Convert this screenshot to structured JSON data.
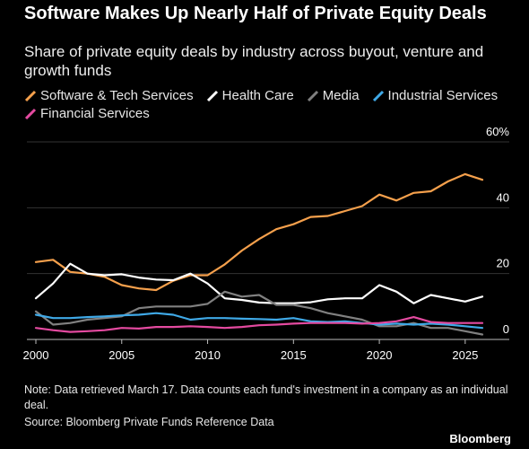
{
  "header": {
    "title": "Software Makes Up Nearly Half of Private Equity Deals",
    "subtitle": "Share of private equity deals by industry across buyout, venture and growth funds"
  },
  "colors": {
    "background": "#000000",
    "software": "#f5a04c",
    "health_care": "#ffffff",
    "media": "#808080",
    "industrial": "#3fa9e7",
    "financial": "#e44aa0",
    "grid": "#333333"
  },
  "legend": [
    {
      "label": "Software & Tech Services",
      "color": "#f5a04c",
      "icon": "slash-line-icon"
    },
    {
      "label": "Health Care",
      "color": "#ffffff",
      "icon": "slash-line-icon"
    },
    {
      "label": "Media",
      "color": "#808080",
      "icon": "slash-line-icon"
    },
    {
      "label": "Industrial Services",
      "color": "#3fa9e7",
      "icon": "slash-line-icon"
    },
    {
      "label": "Financial Services",
      "color": "#e44aa0",
      "icon": "slash-line-icon"
    }
  ],
  "footer": {
    "note": "Note: Data retrieved March 17. Data counts each fund's investment in a company as an individual deal.",
    "source": "Source: Bloomberg Private Funds Reference Data",
    "brand": "Bloomberg"
  },
  "chart_data": {
    "type": "line",
    "title": "Software Makes Up Nearly Half of Private Equity Deals",
    "subtitle": "Share of private equity deals by industry across buyout, venture and growth funds",
    "xlabel": "",
    "ylabel": "",
    "xlim": [
      2000,
      2026
    ],
    "ylim": [
      0,
      60
    ],
    "x_ticks": [
      2000,
      2005,
      2010,
      2015,
      2020,
      2025
    ],
    "x_tick_labels": [
      "2000",
      "2005",
      "2010",
      "2015",
      "2020",
      "2025"
    ],
    "y_ticks": [
      0,
      20,
      40,
      60
    ],
    "y_tick_labels": [
      "0",
      "20",
      "40",
      "60%"
    ],
    "grid": "horizontal",
    "legend_position": "top",
    "x": [
      2000,
      2001,
      2002,
      2003,
      2004,
      2005,
      2006,
      2007,
      2008,
      2009,
      2010,
      2011,
      2012,
      2013,
      2014,
      2015,
      2016,
      2017,
      2018,
      2019,
      2020,
      2021,
      2022,
      2023,
      2024,
      2025,
      2026
    ],
    "series": [
      {
        "name": "Software & Tech Services",
        "color": "#f5a04c",
        "values": [
          23.5,
          24.2,
          20.5,
          20.0,
          19.0,
          16.5,
          15.5,
          15.0,
          17.8,
          19.5,
          19.5,
          22.8,
          27.0,
          30.5,
          33.5,
          35.0,
          37.2,
          37.5,
          39.0,
          40.5,
          44.0,
          42.2,
          44.5,
          45.0,
          48.0,
          50.2,
          48.5
        ]
      },
      {
        "name": "Health Care",
        "color": "#ffffff",
        "values": [
          12.5,
          17.0,
          23.0,
          20.0,
          19.5,
          19.8,
          18.8,
          18.2,
          18.0,
          20.0,
          17.0,
          12.5,
          12.0,
          11.2,
          11.0,
          11.0,
          11.3,
          12.2,
          12.5,
          12.5,
          16.5,
          14.5,
          11.0,
          13.5,
          12.5,
          11.5,
          13.0
        ]
      },
      {
        "name": "Media",
        "color": "#808080",
        "values": [
          8.5,
          4.5,
          5.0,
          6.0,
          6.5,
          7.0,
          9.5,
          10.0,
          10.0,
          10.0,
          10.8,
          14.5,
          13.0,
          13.5,
          10.5,
          10.5,
          9.5,
          8.0,
          7.0,
          6.0,
          4.0,
          4.0,
          5.0,
          3.5,
          3.5,
          2.5,
          1.5
        ]
      },
      {
        "name": "Industrial Services",
        "color": "#3fa9e7",
        "values": [
          7.5,
          6.5,
          6.5,
          6.8,
          7.0,
          7.3,
          7.5,
          8.0,
          7.5,
          6.0,
          6.5,
          6.5,
          6.3,
          6.2,
          6.0,
          6.5,
          5.5,
          5.3,
          5.5,
          5.0,
          4.5,
          4.8,
          4.5,
          4.8,
          4.5,
          4.0,
          3.5
        ]
      },
      {
        "name": "Financial Services",
        "color": "#e44aa0",
        "values": [
          3.5,
          2.8,
          2.3,
          2.5,
          2.8,
          3.5,
          3.3,
          3.8,
          3.8,
          4.0,
          3.8,
          3.5,
          3.8,
          4.3,
          4.5,
          4.8,
          5.0,
          5.0,
          5.0,
          4.8,
          5.0,
          5.5,
          6.8,
          5.3,
          5.0,
          5.0,
          5.0
        ]
      }
    ]
  }
}
